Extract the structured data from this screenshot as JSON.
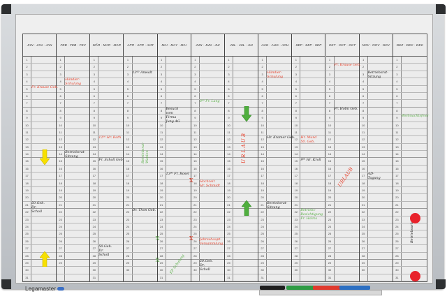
{
  "board": {
    "brand": "Legamaster",
    "colors": {
      "red": "#e8402a",
      "black": "#222222",
      "green": "#5cb04a",
      "yellow": "#f7e000",
      "frame": "#c9cdd1"
    }
  },
  "months": [
    {
      "label": "JAN · JAN · JAN",
      "days": 31
    },
    {
      "label": "FEB · FEB · FEV",
      "days": 29
    },
    {
      "label": "MÄR · MAR · MAR",
      "days": 31
    },
    {
      "label": "APR · APR · AVR",
      "days": 30
    },
    {
      "label": "MAI · MAY · MAI",
      "days": 31
    },
    {
      "label": "JUN · JUN · JUI",
      "days": 30
    },
    {
      "label": "JUL · JUL · JUI",
      "days": 31
    },
    {
      "label": "AUG · AUG · AOU",
      "days": 31
    },
    {
      "label": "SEP · SEP · SEP",
      "days": 30
    },
    {
      "label": "OKT · OCT · OCT",
      "days": 31
    },
    {
      "label": "NOV · NOV · NOV",
      "days": 30
    },
    {
      "label": "DEZ · DEC · DEC",
      "days": 31
    }
  ],
  "notes": [
    {
      "month": 1,
      "day": 5,
      "text": "Fr. Krause Geb.",
      "color": "red"
    },
    {
      "month": 1,
      "day": 21,
      "text": "50.Geb.\nDr.\nScholl",
      "color": "black"
    },
    {
      "month": 2,
      "day": 4,
      "text": "Händler-\nSchulung",
      "color": "red"
    },
    {
      "month": 2,
      "day": 14,
      "text": "Betriebsrat-\nSitzung",
      "color": "black"
    },
    {
      "month": 3,
      "day": 12,
      "text": "12⁰⁰ Hr. Roth",
      "color": "red"
    },
    {
      "month": 3,
      "day": 15,
      "text": "Fr. Scholl Geb.",
      "color": "black"
    },
    {
      "month": 3,
      "day": 27,
      "text": "50.Geb.\nDr.\nScholl",
      "color": "black"
    },
    {
      "month": 4,
      "day": 3,
      "text": "13⁰⁰ Anwalt",
      "color": "black"
    },
    {
      "month": 4,
      "day": 22,
      "text": "Dr. Thon Geb.",
      "color": "black"
    },
    {
      "month": 5,
      "day": 8,
      "text": "Besuch\nvom\nFirma\nJung AG",
      "color": "black"
    },
    {
      "month": 5,
      "day": 17,
      "text": "13⁰⁰ Fr. Rosel",
      "color": "black"
    },
    {
      "month": 6,
      "day": 7,
      "text": "8⁰⁰ Fr. Lang",
      "color": "green"
    },
    {
      "month": 6,
      "day": 18,
      "text": "Hochzeit\nHr. Schmidt",
      "color": "red"
    },
    {
      "month": 6,
      "day": 26,
      "text": "Jahreshaupt-\nVersammlung",
      "color": "red"
    },
    {
      "month": 6,
      "day": 29,
      "text": "50.Geb.\nDr.\nScholl",
      "color": "black"
    },
    {
      "month": 8,
      "day": 3,
      "text": "Händler-\nSchulung",
      "color": "red"
    },
    {
      "month": 8,
      "day": 12,
      "text": "Hr. Kramer Geb.",
      "color": "black"
    },
    {
      "month": 8,
      "day": 21,
      "text": "Betriebsrat-\nSitzung",
      "color": "black"
    },
    {
      "month": 9,
      "day": 12,
      "text": "Hr. Mund\n50. Geb.",
      "color": "red"
    },
    {
      "month": 9,
      "day": 15,
      "text": "9⁰⁰ Hr. Kroll",
      "color": "black"
    },
    {
      "month": 9,
      "day": 22,
      "text": "Betriebs-\nBesichtigung\nFr. Holms",
      "color": "green"
    },
    {
      "month": 10,
      "day": 2,
      "text": "Fr. Krause Geb.",
      "color": "red"
    },
    {
      "month": 10,
      "day": 8,
      "text": "Fr. Holm Geb.",
      "color": "black"
    },
    {
      "month": 11,
      "day": 3,
      "text": "Betriebsrat-\nSitzung",
      "color": "black"
    },
    {
      "month": 11,
      "day": 17,
      "text": "AD-\nTagung",
      "color": "black"
    },
    {
      "month": 12,
      "day": 9,
      "text": "Weihnachtsfeier",
      "color": "green"
    }
  ],
  "rotated_notes": [
    {
      "month": 4,
      "day": 13,
      "text": "Betriebsrat-\nWahlen",
      "color": "green",
      "angle": -90
    },
    {
      "month": 5,
      "day": 28,
      "text": "KP Schulung",
      "color": "green",
      "angle": -55
    },
    {
      "month": 7,
      "day": 13,
      "text": "U R L A U B",
      "color": "red",
      "angle": -90
    },
    {
      "month": 10,
      "day": 16,
      "text": "URLAUB",
      "color": "red",
      "angle": -55
    },
    {
      "month": 12,
      "day": 24,
      "text": "Betriebsurlaub",
      "color": "black",
      "angle": -90
    }
  ],
  "x_marks": [
    {
      "month": 5,
      "day": 26,
      "color": "green"
    },
    {
      "month": 5,
      "day": 29,
      "color": "green"
    },
    {
      "month": 6,
      "day": 18,
      "color": "red"
    },
    {
      "month": 6,
      "day": 26,
      "color": "red"
    }
  ],
  "magnet_arrows": [
    {
      "month": 1,
      "day": 14,
      "direction": "down",
      "color": "yellow"
    },
    {
      "month": 1,
      "day": 28,
      "direction": "up",
      "color": "yellow"
    },
    {
      "month": 7,
      "day": 8,
      "direction": "down",
      "color": "green"
    },
    {
      "month": 7,
      "day": 21,
      "direction": "up",
      "color": "green"
    }
  ],
  "magnet_dots": [
    {
      "month": 12,
      "day": 23,
      "color": "red"
    },
    {
      "month": 12,
      "day": 31,
      "color": "red"
    }
  ],
  "markers": [
    {
      "color": "#1e1e1e"
    },
    {
      "color": "#2e9b44"
    },
    {
      "color": "#e03a2e"
    },
    {
      "color": "#2c6fc2"
    }
  ]
}
